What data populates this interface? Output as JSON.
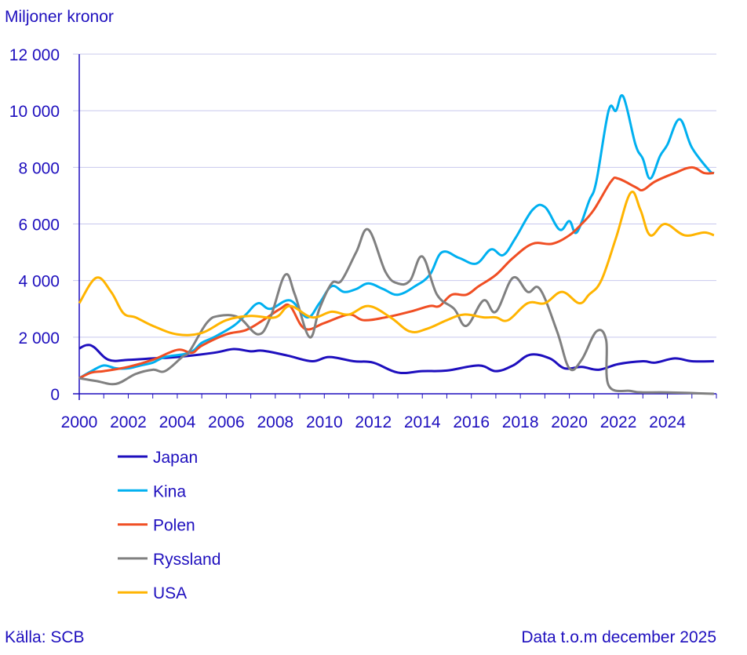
{
  "chart_data": {
    "type": "line",
    "ylabel": "Miljoner kronor",
    "ylim": [
      0,
      12000
    ],
    "yticks": [
      0,
      2000,
      4000,
      6000,
      8000,
      10000,
      12000
    ],
    "ytick_labels": [
      "0",
      "2 000",
      "4 000",
      "6 000",
      "8 000",
      "10 000",
      "12 000"
    ],
    "xlim": [
      2000,
      2026
    ],
    "xticks": [
      2000,
      2002,
      2004,
      2006,
      2008,
      2010,
      2012,
      2014,
      2016,
      2018,
      2020,
      2022,
      2024
    ],
    "xtick_labels": [
      "2000",
      "2002",
      "2004",
      "2006",
      "2008",
      "2010",
      "2012",
      "2014",
      "2016",
      "2018",
      "2020",
      "2022",
      "2024"
    ],
    "grid": "horizontal",
    "legend_placement": "bottom-left",
    "series": [
      {
        "name": "Japan",
        "color": "#1e0fbe",
        "points": [
          [
            2000,
            1600
          ],
          [
            2000.3,
            1720
          ],
          [
            2000.6,
            1650
          ],
          [
            2001.2,
            1200
          ],
          [
            2002,
            1200
          ],
          [
            2003,
            1250
          ],
          [
            2004,
            1300
          ],
          [
            2005.5,
            1450
          ],
          [
            2006.3,
            1580
          ],
          [
            2007,
            1500
          ],
          [
            2007.5,
            1520
          ],
          [
            2008.5,
            1350
          ],
          [
            2009.5,
            1150
          ],
          [
            2010.2,
            1300
          ],
          [
            2011.2,
            1150
          ],
          [
            2012,
            1100
          ],
          [
            2013,
            750
          ],
          [
            2014,
            800
          ],
          [
            2015,
            820
          ],
          [
            2016.3,
            1000
          ],
          [
            2017,
            800
          ],
          [
            2017.7,
            1000
          ],
          [
            2018.4,
            1380
          ],
          [
            2019.2,
            1250
          ],
          [
            2019.8,
            900
          ],
          [
            2020.5,
            950
          ],
          [
            2021.2,
            850
          ],
          [
            2022,
            1050
          ],
          [
            2023,
            1150
          ],
          [
            2023.5,
            1100
          ],
          [
            2024.3,
            1250
          ],
          [
            2025,
            1150
          ],
          [
            2025.9,
            1150
          ]
        ]
      },
      {
        "name": "Kina",
        "color": "#00b0f0",
        "points": [
          [
            2000,
            550
          ],
          [
            2000.5,
            800
          ],
          [
            2001,
            1000
          ],
          [
            2001.5,
            900
          ],
          [
            2002,
            900
          ],
          [
            2002.5,
            1000
          ],
          [
            2003,
            1100
          ],
          [
            2003.5,
            1300
          ],
          [
            2004.5,
            1450
          ],
          [
            2005,
            1800
          ],
          [
            2005.5,
            2000
          ],
          [
            2006.3,
            2400
          ],
          [
            2006.8,
            2800
          ],
          [
            2007.3,
            3200
          ],
          [
            2007.8,
            3000
          ],
          [
            2008.6,
            3300
          ],
          [
            2009.3,
            2700
          ],
          [
            2009.8,
            3200
          ],
          [
            2010.3,
            3800
          ],
          [
            2010.8,
            3600
          ],
          [
            2011.3,
            3700
          ],
          [
            2011.8,
            3900
          ],
          [
            2012.4,
            3700
          ],
          [
            2013,
            3500
          ],
          [
            2013.7,
            3800
          ],
          [
            2014.3,
            4200
          ],
          [
            2014.8,
            5000
          ],
          [
            2015.5,
            4800
          ],
          [
            2016.2,
            4600
          ],
          [
            2016.8,
            5100
          ],
          [
            2017.3,
            4900
          ],
          [
            2017.8,
            5500
          ],
          [
            2018.5,
            6500
          ],
          [
            2019,
            6600
          ],
          [
            2019.6,
            5800
          ],
          [
            2020,
            6100
          ],
          [
            2020.3,
            5700
          ],
          [
            2020.8,
            6800
          ],
          [
            2021.1,
            7500
          ],
          [
            2021.6,
            10000
          ],
          [
            2021.9,
            10000
          ],
          [
            2022.2,
            10500
          ],
          [
            2022.7,
            8800
          ],
          [
            2023,
            8300
          ],
          [
            2023.3,
            7600
          ],
          [
            2023.7,
            8400
          ],
          [
            2024,
            8800
          ],
          [
            2024.5,
            9700
          ],
          [
            2025,
            8700
          ],
          [
            2025.7,
            7900
          ],
          [
            2025.9,
            7800
          ]
        ]
      },
      {
        "name": "Polen",
        "color": "#f04e23",
        "points": [
          [
            2000,
            550
          ],
          [
            2000.5,
            750
          ],
          [
            2001,
            800
          ],
          [
            2002,
            950
          ],
          [
            2003,
            1200
          ],
          [
            2004,
            1550
          ],
          [
            2004.6,
            1450
          ],
          [
            2005,
            1700
          ],
          [
            2006,
            2100
          ],
          [
            2006.8,
            2250
          ],
          [
            2007.5,
            2600
          ],
          [
            2008.2,
            3000
          ],
          [
            2008.6,
            3100
          ],
          [
            2009.2,
            2300
          ],
          [
            2010,
            2500
          ],
          [
            2011,
            2800
          ],
          [
            2011.6,
            2600
          ],
          [
            2012.5,
            2700
          ],
          [
            2013.5,
            2900
          ],
          [
            2014.3,
            3100
          ],
          [
            2014.7,
            3100
          ],
          [
            2015.2,
            3500
          ],
          [
            2015.8,
            3500
          ],
          [
            2016.3,
            3800
          ],
          [
            2017,
            4200
          ],
          [
            2017.7,
            4800
          ],
          [
            2018.5,
            5300
          ],
          [
            2019.3,
            5300
          ],
          [
            2020,
            5600
          ],
          [
            2020.5,
            6000
          ],
          [
            2021,
            6500
          ],
          [
            2021.7,
            7500
          ],
          [
            2022,
            7600
          ],
          [
            2022.7,
            7300
          ],
          [
            2023,
            7200
          ],
          [
            2023.5,
            7500
          ],
          [
            2024.3,
            7800
          ],
          [
            2025,
            8000
          ],
          [
            2025.5,
            7800
          ],
          [
            2025.9,
            7800
          ]
        ]
      },
      {
        "name": "Ryssland",
        "color": "#808080",
        "points": [
          [
            2000,
            550
          ],
          [
            2000.7,
            450
          ],
          [
            2001.5,
            350
          ],
          [
            2002.3,
            700
          ],
          [
            2003,
            850
          ],
          [
            2003.5,
            800
          ],
          [
            2004.2,
            1300
          ],
          [
            2004.5,
            1500
          ],
          [
            2005.2,
            2500
          ],
          [
            2005.7,
            2750
          ],
          [
            2006.5,
            2700
          ],
          [
            2007.3,
            2100
          ],
          [
            2007.8,
            2700
          ],
          [
            2008.4,
            4200
          ],
          [
            2008.8,
            3500
          ],
          [
            2009.4,
            2000
          ],
          [
            2009.8,
            3000
          ],
          [
            2010.3,
            3900
          ],
          [
            2010.7,
            4000
          ],
          [
            2011.3,
            5000
          ],
          [
            2011.8,
            5800
          ],
          [
            2012.5,
            4300
          ],
          [
            2013,
            3900
          ],
          [
            2013.5,
            4000
          ],
          [
            2014,
            4850
          ],
          [
            2014.6,
            3500
          ],
          [
            2015.3,
            3000
          ],
          [
            2015.8,
            2400
          ],
          [
            2016.5,
            3300
          ],
          [
            2017,
            2900
          ],
          [
            2017.7,
            4100
          ],
          [
            2018.3,
            3600
          ],
          [
            2018.8,
            3700
          ],
          [
            2019.5,
            2200
          ],
          [
            2020,
            900
          ],
          [
            2020.5,
            1200
          ],
          [
            2021.1,
            2200
          ],
          [
            2021.5,
            1900
          ],
          [
            2021.6,
            300
          ],
          [
            2022.5,
            100
          ],
          [
            2023,
            50
          ],
          [
            2024,
            50
          ],
          [
            2025.9,
            0
          ]
        ]
      },
      {
        "name": "USA",
        "color": "#ffb400",
        "points": [
          [
            2000,
            3200
          ],
          [
            2000.7,
            4100
          ],
          [
            2001.3,
            3600
          ],
          [
            2001.8,
            2850
          ],
          [
            2002.3,
            2700
          ],
          [
            2003,
            2400
          ],
          [
            2004,
            2100
          ],
          [
            2005,
            2150
          ],
          [
            2006,
            2600
          ],
          [
            2007,
            2750
          ],
          [
            2008,
            2700
          ],
          [
            2008.6,
            3100
          ],
          [
            2009.5,
            2700
          ],
          [
            2010.3,
            2900
          ],
          [
            2011,
            2800
          ],
          [
            2011.8,
            3100
          ],
          [
            2012.7,
            2700
          ],
          [
            2013.5,
            2200
          ],
          [
            2014.2,
            2300
          ],
          [
            2015,
            2600
          ],
          [
            2015.7,
            2800
          ],
          [
            2016.5,
            2700
          ],
          [
            2017,
            2700
          ],
          [
            2017.5,
            2600
          ],
          [
            2018.3,
            3200
          ],
          [
            2019,
            3200
          ],
          [
            2019.7,
            3600
          ],
          [
            2020.4,
            3200
          ],
          [
            2020.8,
            3500
          ],
          [
            2021.3,
            4000
          ],
          [
            2021.9,
            5500
          ],
          [
            2022.5,
            7100
          ],
          [
            2022.9,
            6500
          ],
          [
            2023.3,
            5600
          ],
          [
            2023.9,
            6000
          ],
          [
            2024.7,
            5600
          ],
          [
            2025.5,
            5700
          ],
          [
            2025.9,
            5600
          ]
        ]
      }
    ]
  },
  "footer": {
    "source": "Källa: SCB",
    "data_note": "Data t.o.m december 2025"
  }
}
